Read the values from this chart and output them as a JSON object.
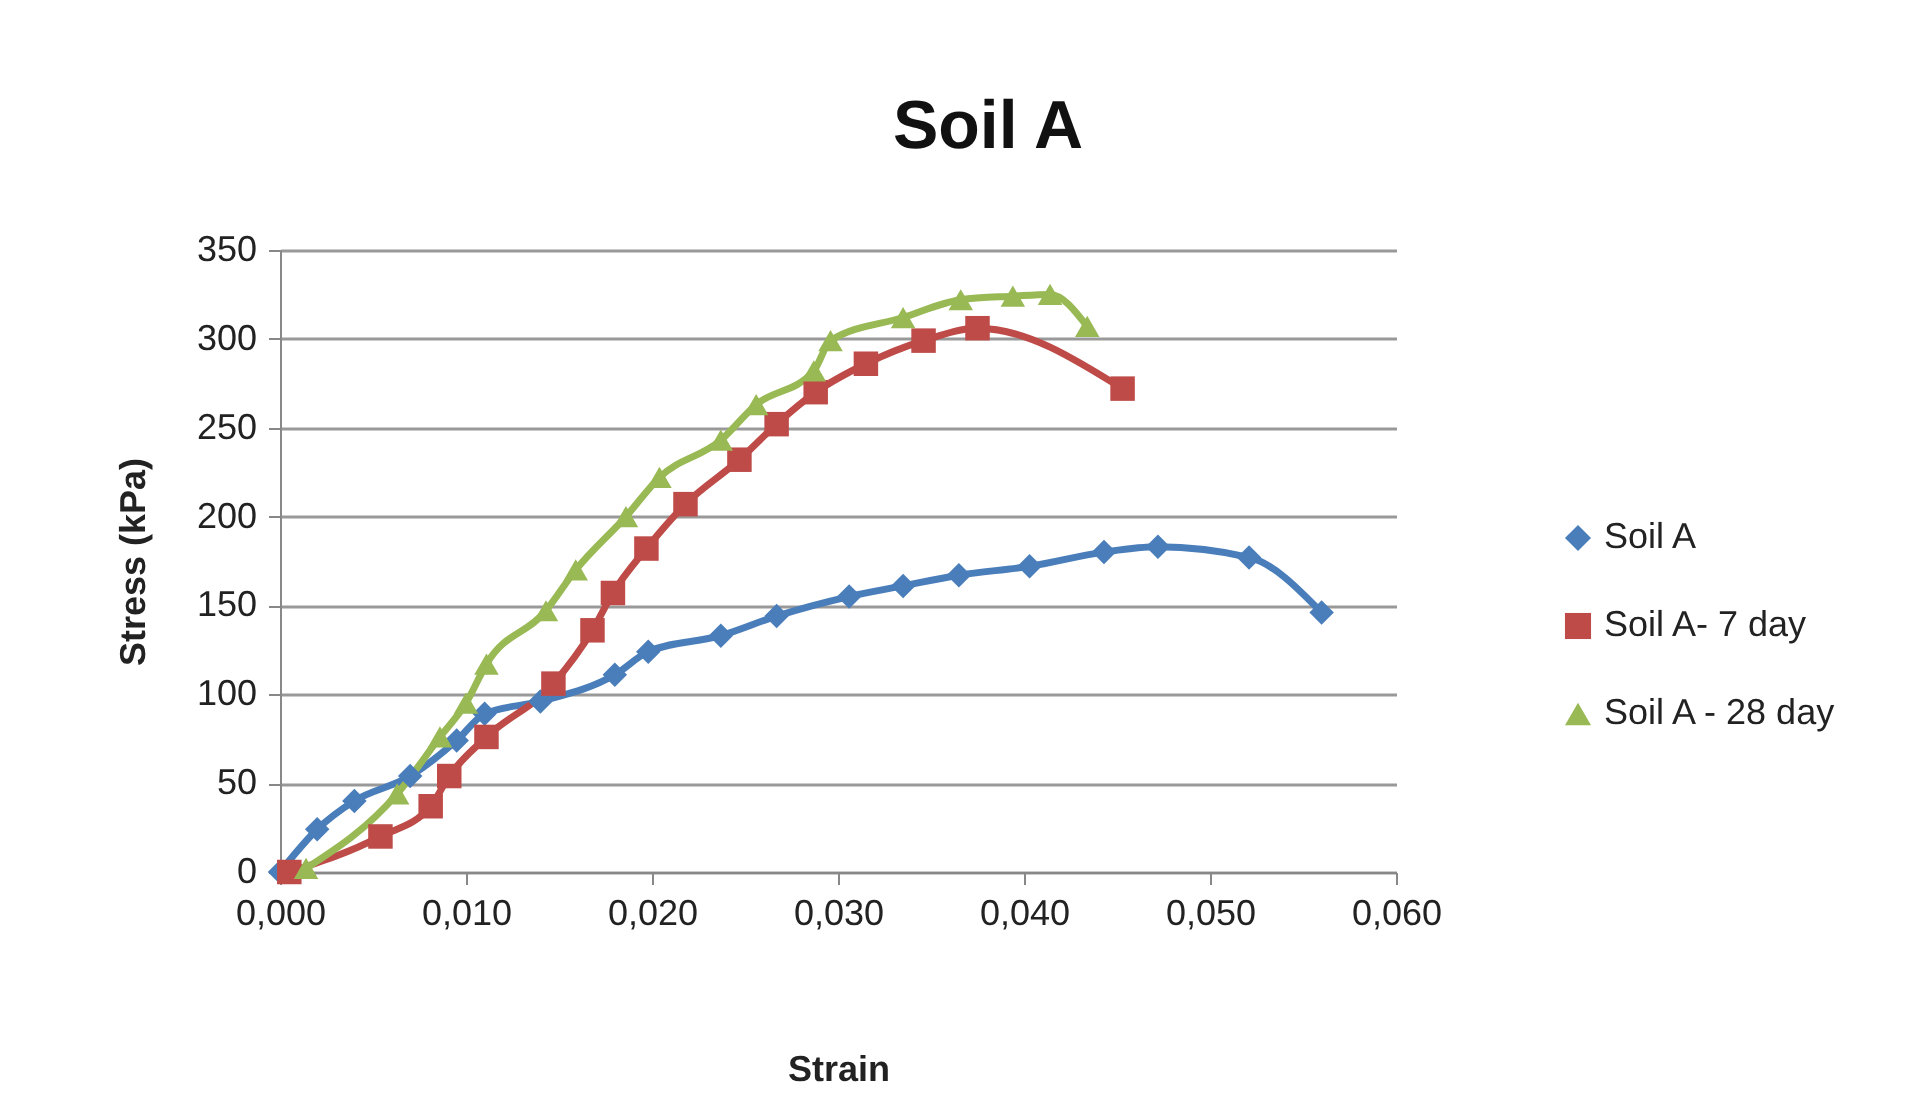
{
  "chart_data": {
    "type": "line",
    "title": "Soil A",
    "xlabel": "Strain",
    "ylabel": "Stress (kPa)",
    "xlim": [
      0,
      0.06
    ],
    "ylim": [
      0,
      350
    ],
    "xticks": [
      {
        "value": 0,
        "label": "0,000"
      },
      {
        "value": 0.01,
        "label": "0,010"
      },
      {
        "value": 0.02,
        "label": "0,020"
      },
      {
        "value": 0.03,
        "label": "0,030"
      },
      {
        "value": 0.04,
        "label": "0,040"
      },
      {
        "value": 0.05,
        "label": "0,050"
      },
      {
        "value": 0.06,
        "label": "0,060"
      }
    ],
    "yticks": [
      0,
      50,
      100,
      150,
      200,
      250,
      300,
      350
    ],
    "grid": "y",
    "legend": "right",
    "line_style": "solid",
    "series": [
      {
        "name": "Soil A",
        "color": "#4a7ebb",
        "marker": "diamond",
        "x": [
          0,
          0.002,
          0.004,
          0.007,
          0.0095,
          0.011,
          0.014,
          0.018,
          0.0198,
          0.0237,
          0.0267,
          0.0306,
          0.0335,
          0.0365,
          0.0403,
          0.0443,
          0.0472,
          0.0521,
          0.056
        ],
        "values": [
          0,
          24,
          40,
          54,
          74,
          89,
          96,
          111,
          124,
          133,
          144,
          155,
          161,
          167,
          172,
          180,
          183,
          177,
          146
        ]
      },
      {
        "name": "Soil A- 7 day",
        "color": "#be4b48",
        "marker": "square",
        "x": [
          0.0005,
          0.0054,
          0.0081,
          0.0091,
          0.0111,
          0.0147,
          0.0168,
          0.0179,
          0.0197,
          0.0218,
          0.0247,
          0.0267,
          0.0288,
          0.0315,
          0.0346,
          0.0375,
          0.0453
        ],
        "values": [
          0,
          20,
          37,
          54,
          76,
          106,
          136,
          157,
          182,
          207,
          232,
          252,
          270,
          286,
          299,
          306,
          272
        ]
      },
      {
        "name": "Soil A - 28 day",
        "color": "#98b954",
        "marker": "triangle",
        "x": [
          0.0014,
          0.0063,
          0.0086,
          0.01,
          0.0111,
          0.0143,
          0.0159,
          0.0186,
          0.0204,
          0.0237,
          0.0256,
          0.0287,
          0.0296,
          0.0335,
          0.0366,
          0.0394,
          0.0414,
          0.0434
        ],
        "values": [
          2,
          44,
          76,
          95,
          117,
          147,
          170,
          200,
          222,
          243,
          263,
          282,
          299,
          312,
          322,
          324,
          325,
          307
        ]
      }
    ]
  }
}
